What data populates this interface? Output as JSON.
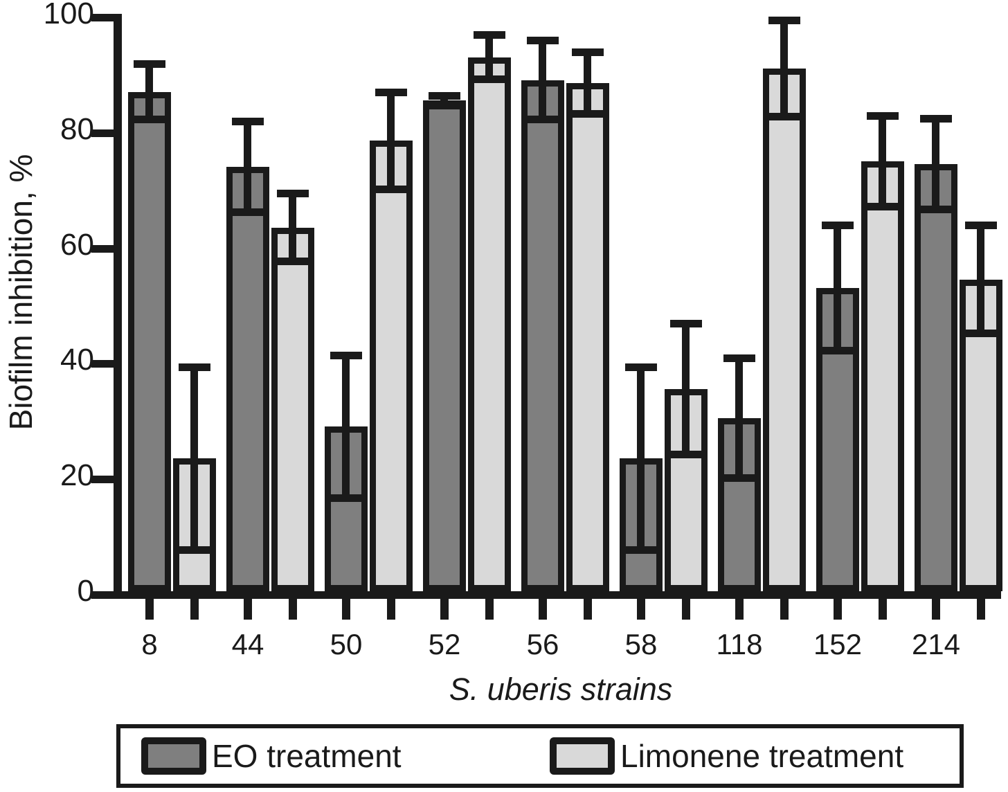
{
  "chart_data": {
    "type": "bar",
    "title": "",
    "xlabel": "S. uberis strains",
    "ylabel": "Biofilm inhibition, %",
    "categories": [
      "8",
      "44",
      "50",
      "52",
      "56",
      "58",
      "118",
      "152",
      "214"
    ],
    "yticks": [
      0,
      20,
      40,
      60,
      80,
      100
    ],
    "ylim": [
      0,
      100
    ],
    "grid": false,
    "legend_position": "bottom",
    "bar_border_color": "#1a1a1a",
    "background_color": "#ffffff",
    "series": [
      {
        "name": "EO treatment",
        "color": "#7f7f7f",
        "values": [
          86.5,
          73.5,
          28.5,
          85,
          88.5,
          23,
          30,
          52.5,
          74
        ],
        "errors": [
          5.5,
          8.5,
          13,
          1.5,
          7.5,
          16.5,
          11,
          11.5,
          8.5
        ]
      },
      {
        "name": "Limonene treatment",
        "color": "#d9d9d9",
        "values": [
          23,
          63,
          78,
          92.5,
          88,
          35,
          90.5,
          74.5,
          54
        ],
        "errors": [
          16.5,
          6.5,
          9,
          4.5,
          6,
          12,
          9,
          8.5,
          10
        ]
      }
    ]
  }
}
